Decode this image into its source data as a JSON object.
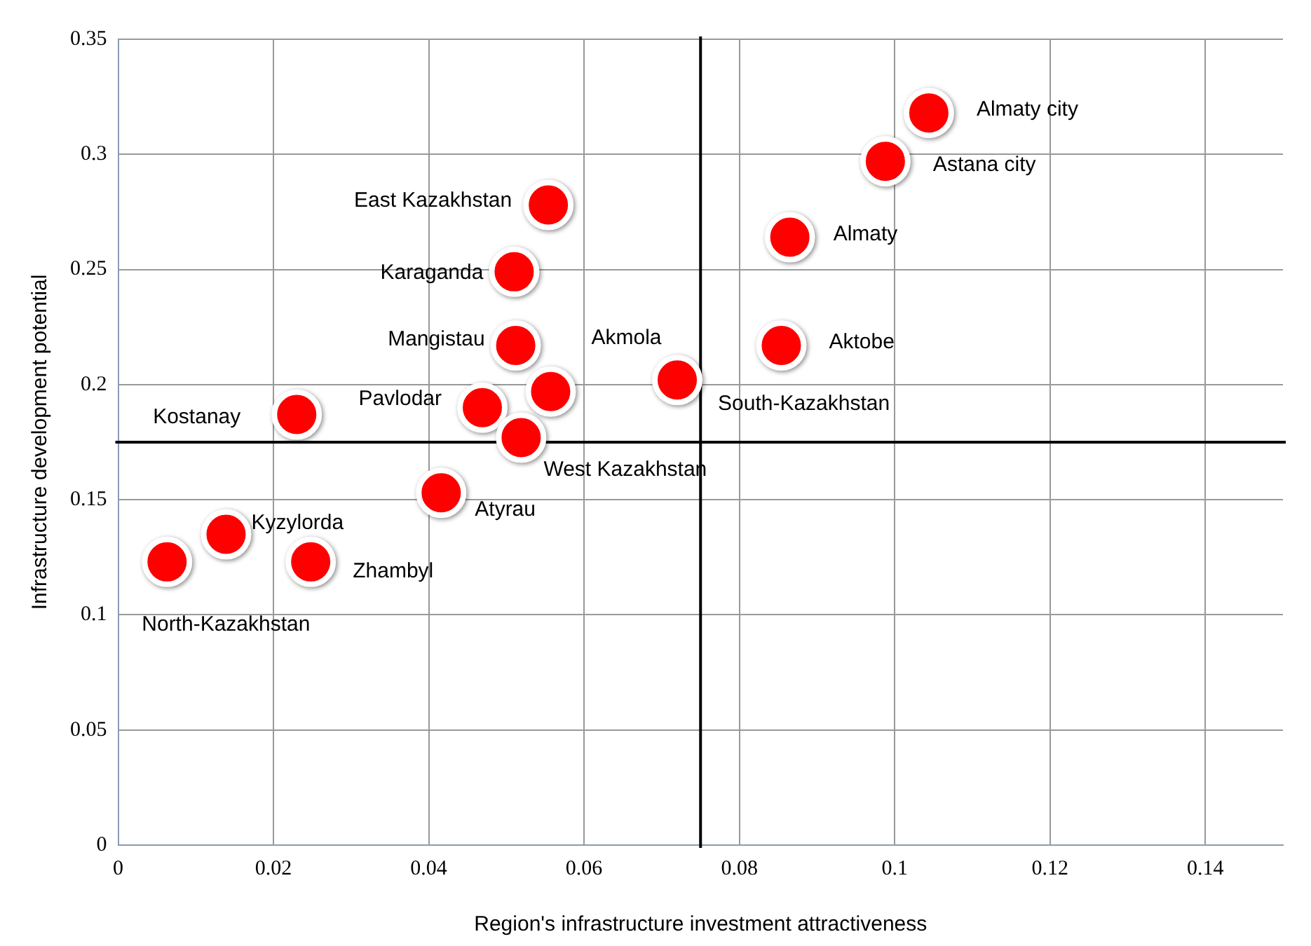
{
  "chart_data": {
    "type": "scatter",
    "xlabel": "Region's infrastructure investment attractiveness",
    "ylabel": "Infrastructure development potential",
    "series": [
      {
        "color": "#ff0000",
        "x": [
          0.1044,
          0.0988,
          0.0865,
          0.0854,
          0.0554,
          0.051,
          0.0512,
          0.0557,
          0.072,
          0.023,
          0.0469,
          0.0519,
          0.0416,
          0.0139,
          0.0248,
          0.0063
        ],
        "values": [
          0.318,
          0.297,
          0.264,
          0.217,
          0.278,
          0.249,
          0.217,
          0.197,
          0.202,
          0.187,
          0.19,
          0.177,
          0.153,
          0.135,
          0.123,
          0.123
        ]
      }
    ],
    "annotations": [
      {
        "text": "Almaty city",
        "x": 0.1044,
        "y": 0.318
      },
      {
        "text": "Astana city",
        "x": 0.0988,
        "y": 0.297
      },
      {
        "text": "Almaty",
        "x": 0.0865,
        "y": 0.264
      },
      {
        "text": "Aktobe",
        "x": 0.0854,
        "y": 0.217
      },
      {
        "text": "East Kazakhstan",
        "x": 0.0554,
        "y": 0.278
      },
      {
        "text": "Karaganda",
        "x": 0.051,
        "y": 0.249
      },
      {
        "text": "Mangistau",
        "x": 0.0512,
        "y": 0.217
      },
      {
        "text": "Akmola",
        "x": 0.0557,
        "y": 0.197
      },
      {
        "text": "South-Kazakhstan",
        "x": 0.072,
        "y": 0.202
      },
      {
        "text": "Kostanay",
        "x": 0.023,
        "y": 0.187
      },
      {
        "text": "Pavlodar",
        "x": 0.0469,
        "y": 0.19
      },
      {
        "text": "West Kazakhstan",
        "x": 0.0519,
        "y": 0.177
      },
      {
        "text": "Atyrau",
        "x": 0.0416,
        "y": 0.153
      },
      {
        "text": "Kyzylorda",
        "x": 0.0139,
        "y": 0.135
      },
      {
        "text": "Zhambyl",
        "x": 0.0248,
        "y": 0.123
      },
      {
        "text": "North-Kazakhstan",
        "x": 0.0063,
        "y": 0.123
      }
    ],
    "ref_lines": [
      {
        "axis": "x",
        "value": 0.075,
        "color": "#000000"
      },
      {
        "axis": "y",
        "value": 0.175,
        "color": "#000000"
      }
    ],
    "xlim": [
      0,
      0.15
    ],
    "xticks": [
      0,
      0.02,
      0.04,
      0.06,
      0.08,
      0.1,
      0.12,
      0.14
    ],
    "ylim": [
      0,
      0.35
    ],
    "yticks": [
      0,
      0.05,
      0.1,
      0.15,
      0.2,
      0.25,
      0.3,
      0.35
    ],
    "grid": true,
    "legend": false,
    "marker": "circle"
  }
}
